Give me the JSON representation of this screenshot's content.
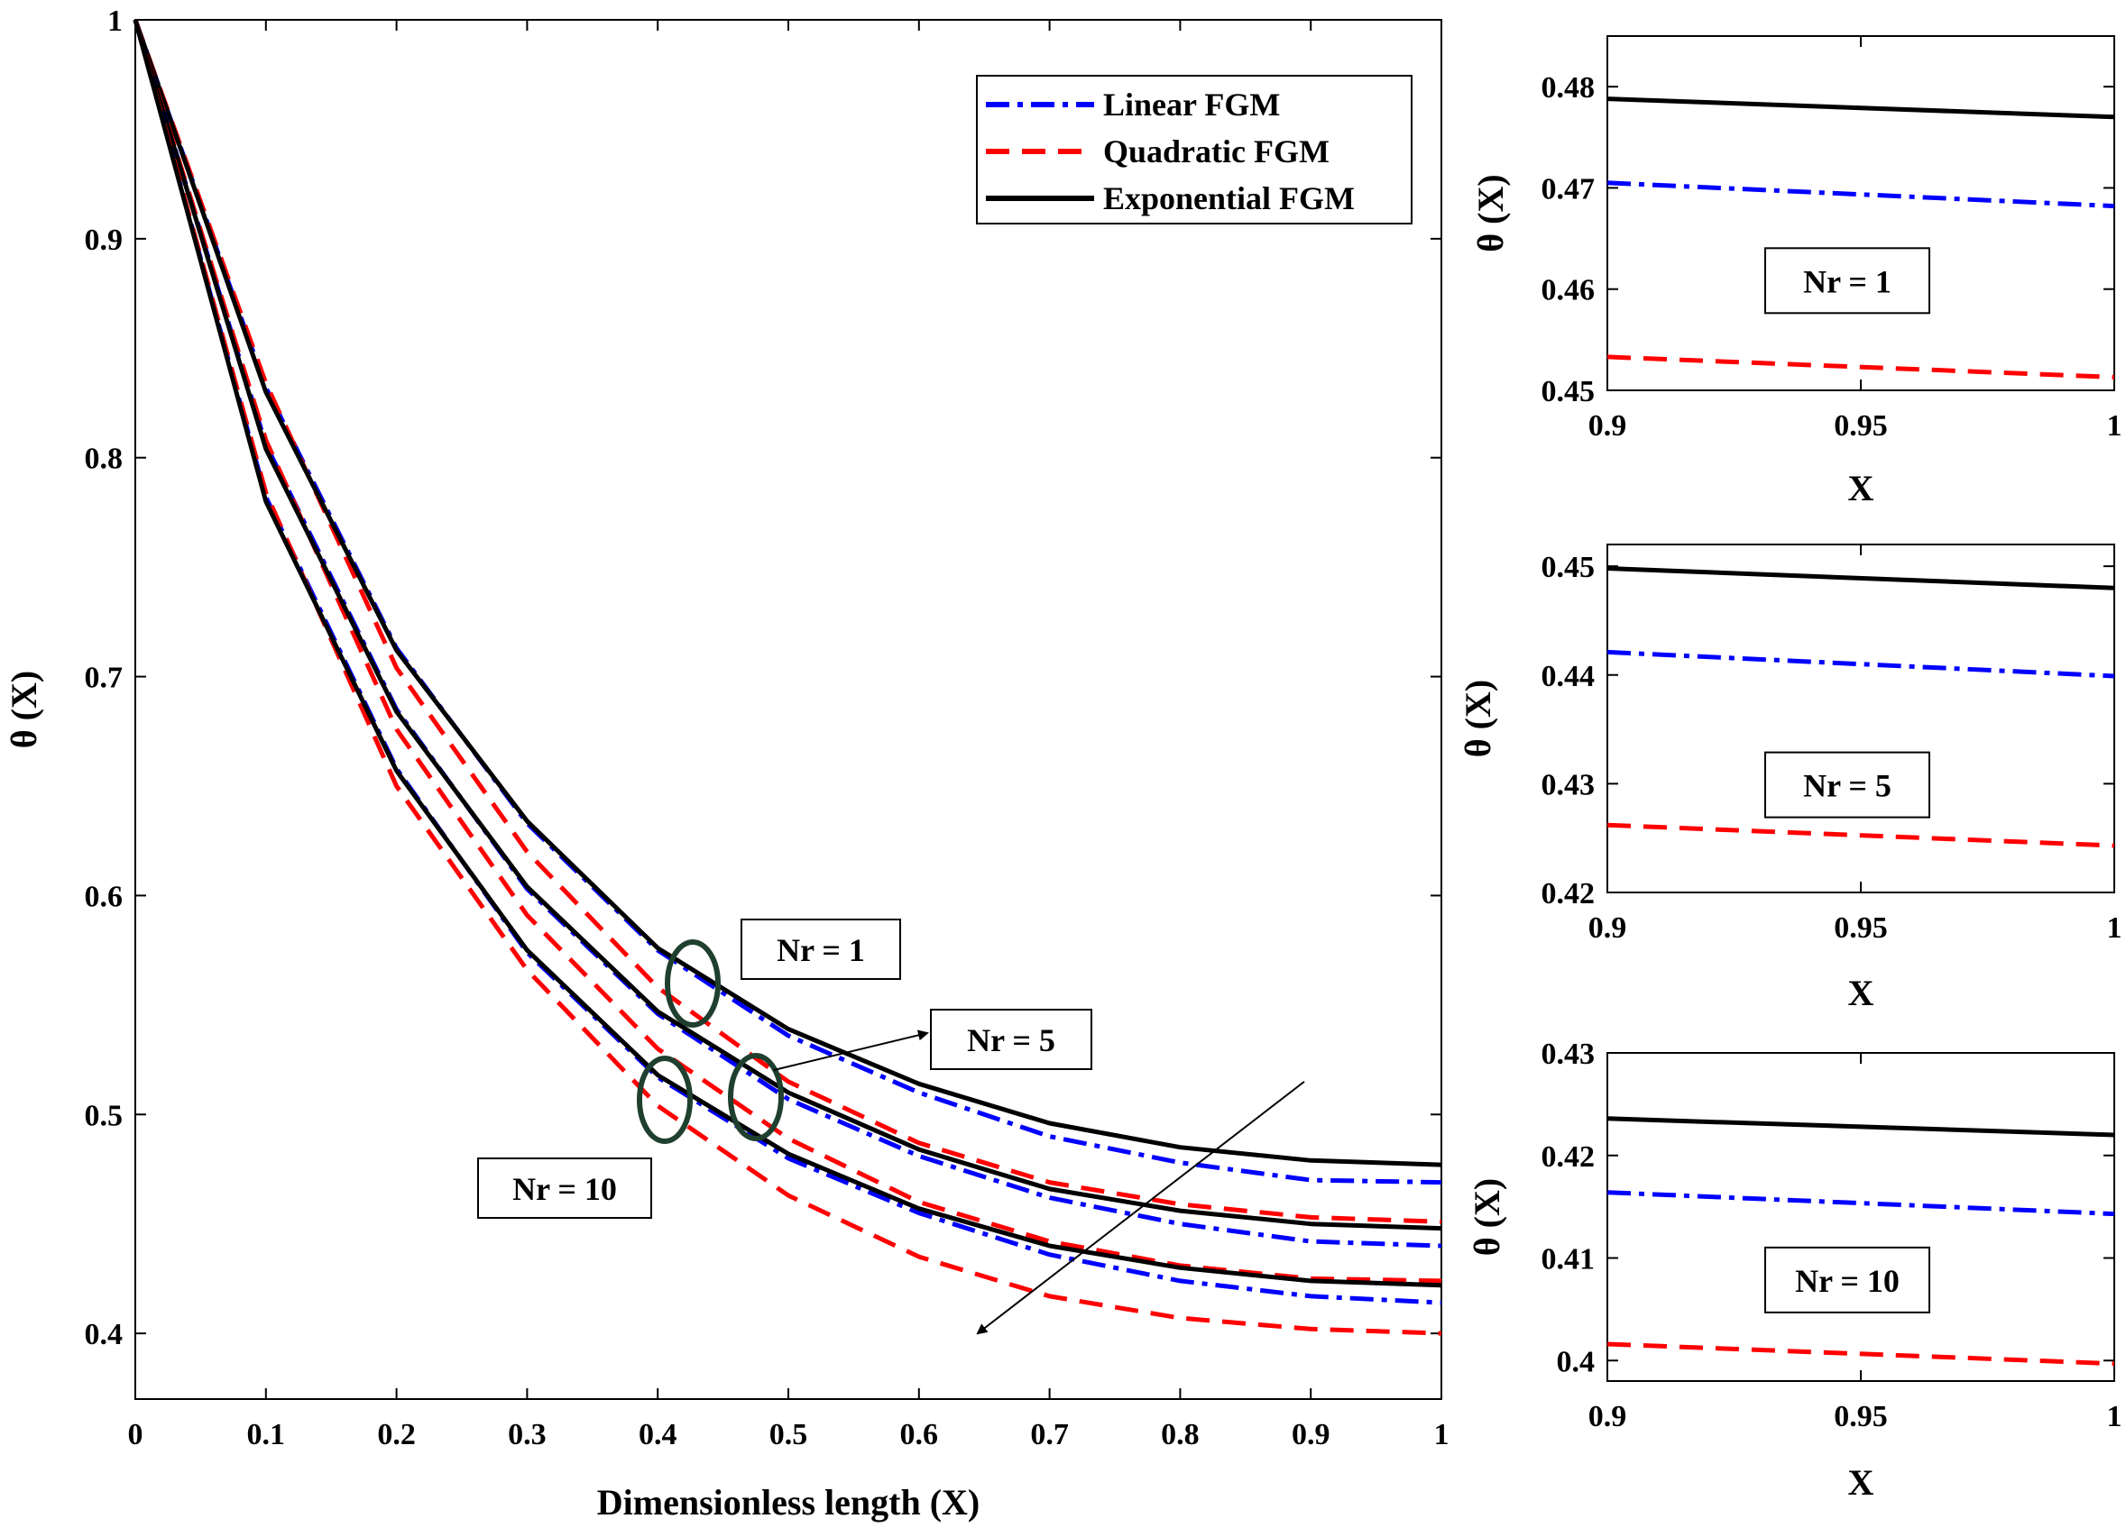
{
  "chart_data": [
    {
      "id": "main",
      "type": "line",
      "title": "",
      "xlabel": "Dimensionless length (X)",
      "ylabel": "θ (X)",
      "xlim": [
        0,
        1
      ],
      "ylim": [
        0.37,
        1.0
      ],
      "xticks": [
        0,
        0.1,
        0.2,
        0.3,
        0.4,
        0.5,
        0.6,
        0.7,
        0.8,
        0.9,
        1
      ],
      "xtick_labels": [
        "0",
        "0.1",
        "0.2",
        "0.3",
        "0.4",
        "0.5",
        "0.6",
        "0.7",
        "0.8",
        "0.9",
        "1"
      ],
      "yticks": [
        0.4,
        0.5,
        0.6,
        0.7,
        0.8,
        0.9,
        1.0
      ],
      "ytick_labels": [
        "0.4",
        "0.5",
        "0.6",
        "0.7",
        "0.8",
        "0.9",
        "1"
      ],
      "x": [
        0,
        0.1,
        0.2,
        0.3,
        0.4,
        0.5,
        0.6,
        0.7,
        0.8,
        0.9,
        1.0
      ],
      "legend": {
        "position": "top-right",
        "entries": [
          "Linear FGM",
          "Quadratic FGM",
          "Exponential FGM"
        ]
      },
      "series": [
        {
          "name": "Linear FGM",
          "group": "Nr = 1",
          "style": "dashdot",
          "color": "#0000ff",
          "values": [
            1.0,
            0.832,
            0.713,
            0.633,
            0.575,
            0.536,
            0.51,
            0.49,
            0.478,
            0.47,
            0.469
          ]
        },
        {
          "name": "Quadratic FGM",
          "group": "Nr = 1",
          "style": "dashed",
          "color": "#ff0000",
          "values": [
            1.0,
            0.834,
            0.704,
            0.62,
            0.558,
            0.515,
            0.487,
            0.469,
            0.459,
            0.453,
            0.451
          ]
        },
        {
          "name": "Exponential FGM",
          "group": "Nr = 1",
          "style": "solid",
          "color": "#000000",
          "values": [
            1.0,
            0.83,
            0.712,
            0.634,
            0.576,
            0.539,
            0.514,
            0.496,
            0.485,
            0.479,
            0.477
          ]
        },
        {
          "name": "Linear FGM",
          "group": "Nr = 5",
          "style": "dashdot",
          "color": "#0000ff",
          "values": [
            1.0,
            0.806,
            0.685,
            0.603,
            0.546,
            0.507,
            0.481,
            0.462,
            0.45,
            0.442,
            0.44
          ]
        },
        {
          "name": "Quadratic FGM",
          "group": "Nr = 5",
          "style": "dashed",
          "color": "#ff0000",
          "values": [
            1.0,
            0.808,
            0.676,
            0.591,
            0.53,
            0.489,
            0.46,
            0.442,
            0.431,
            0.425,
            0.424
          ]
        },
        {
          "name": "Exponential FGM",
          "group": "Nr = 5",
          "style": "solid",
          "color": "#000000",
          "values": [
            1.0,
            0.804,
            0.684,
            0.604,
            0.547,
            0.51,
            0.484,
            0.466,
            0.456,
            0.45,
            0.448
          ]
        },
        {
          "name": "Linear FGM",
          "group": "Nr = 10",
          "style": "dashdot",
          "color": "#0000ff",
          "values": [
            1.0,
            0.782,
            0.658,
            0.574,
            0.517,
            0.48,
            0.455,
            0.436,
            0.424,
            0.417,
            0.414
          ]
        },
        {
          "name": "Quadratic FGM",
          "group": "Nr = 10",
          "style": "dashed",
          "color": "#ff0000",
          "values": [
            1.0,
            0.784,
            0.65,
            0.566,
            0.504,
            0.463,
            0.435,
            0.417,
            0.407,
            0.402,
            0.4
          ]
        },
        {
          "name": "Exponential FGM",
          "group": "Nr = 10",
          "style": "solid",
          "color": "#000000",
          "values": [
            1.0,
            0.78,
            0.657,
            0.575,
            0.518,
            0.482,
            0.457,
            0.44,
            0.43,
            0.424,
            0.422
          ]
        }
      ],
      "annotations": [
        {
          "text": "Nr = 1",
          "x": 0.43,
          "y": 0.565
        },
        {
          "text": "Nr = 5",
          "x": 0.475,
          "y": 0.51
        },
        {
          "text": "Nr = 10",
          "x": 0.405,
          "y": 0.508
        }
      ],
      "arrow": {
        "from": [
          0.895,
          0.515
        ],
        "to": [
          0.645,
          0.4
        ]
      }
    },
    {
      "id": "inset-nr1",
      "type": "line",
      "title": "",
      "xlabel": "X",
      "ylabel": "θ (X)",
      "xlim": [
        0.9,
        1
      ],
      "ylim": [
        0.45,
        0.485
      ],
      "xticks": [
        0.9,
        0.95,
        1
      ],
      "xtick_labels": [
        "0.9",
        "0.95",
        "1"
      ],
      "yticks": [
        0.45,
        0.46,
        0.47,
        0.48
      ],
      "ytick_labels": [
        "0.45",
        "0.46",
        "0.47",
        "0.48"
      ],
      "x": [
        0.9,
        1.0
      ],
      "label": "Nr = 1",
      "series": [
        {
          "name": "Linear FGM",
          "style": "dashdot",
          "color": "#0000ff",
          "values": [
            0.4705,
            0.4682
          ]
        },
        {
          "name": "Quadratic FGM",
          "style": "dashed",
          "color": "#ff0000",
          "values": [
            0.4533,
            0.4513
          ]
        },
        {
          "name": "Exponential FGM",
          "style": "solid",
          "color": "#000000",
          "values": [
            0.4788,
            0.477
          ]
        }
      ]
    },
    {
      "id": "inset-nr5",
      "type": "line",
      "title": "",
      "xlabel": "X",
      "ylabel": "θ (X)",
      "xlim": [
        0.9,
        1
      ],
      "ylim": [
        0.42,
        0.452
      ],
      "xticks": [
        0.9,
        0.95,
        1
      ],
      "xtick_labels": [
        "0.9",
        "0.95",
        "1"
      ],
      "yticks": [
        0.42,
        0.43,
        0.44,
        0.45
      ],
      "ytick_labels": [
        "0.42",
        "0.43",
        "0.44",
        "0.45"
      ],
      "x": [
        0.9,
        1.0
      ],
      "label": "Nr = 5",
      "series": [
        {
          "name": "Linear FGM",
          "style": "dashdot",
          "color": "#0000ff",
          "values": [
            0.4421,
            0.4399
          ]
        },
        {
          "name": "Quadratic FGM",
          "style": "dashed",
          "color": "#ff0000",
          "values": [
            0.4262,
            0.4243
          ]
        },
        {
          "name": "Exponential FGM",
          "style": "solid",
          "color": "#000000",
          "values": [
            0.4498,
            0.448
          ]
        }
      ]
    },
    {
      "id": "inset-nr10",
      "type": "line",
      "title": "",
      "xlabel": "X",
      "ylabel": "θ (X)",
      "xlim": [
        0.9,
        1
      ],
      "ylim": [
        0.398,
        0.43
      ],
      "xticks": [
        0.9,
        0.95,
        1
      ],
      "xtick_labels": [
        "0.9",
        "0.95",
        "1"
      ],
      "yticks": [
        0.4,
        0.41,
        0.42,
        0.43
      ],
      "ytick_labels": [
        "0.4",
        "0.41",
        "0.42",
        "0.43"
      ],
      "x": [
        0.9,
        1.0
      ],
      "label": "Nr = 10",
      "series": [
        {
          "name": "Linear FGM",
          "style": "dashdot",
          "color": "#0000ff",
          "values": [
            0.4164,
            0.4143
          ]
        },
        {
          "name": "Quadratic FGM",
          "style": "dashed",
          "color": "#ff0000",
          "values": [
            0.4016,
            0.3997
          ]
        },
        {
          "name": "Exponential FGM",
          "style": "solid",
          "color": "#000000",
          "values": [
            0.4236,
            0.422
          ]
        }
      ]
    }
  ]
}
